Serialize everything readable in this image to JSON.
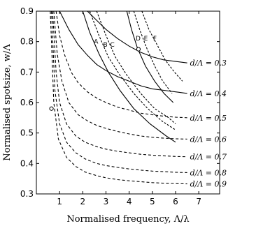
{
  "chart_data": {
    "type": "line",
    "xlabel": "Normalised frequency, Λ/λ",
    "ylabel": "Normalised spotsize, w/Λ",
    "xlim": [
      0,
      7.9
    ],
    "ylim": [
      0.3,
      0.9
    ],
    "xticks": [
      "1",
      "2",
      "3",
      "4",
      "5",
      "6",
      "7"
    ],
    "yticks": [
      "0.3",
      "0.4",
      "0.5",
      "0.6",
      "0.7",
      "0.8",
      "0.9"
    ],
    "grid": false,
    "series": [
      {
        "name": "d/Λ = 0.3",
        "style": "solid",
        "x": [
          2.2,
          2.6,
          3.0,
          3.5,
          4.0,
          4.5,
          5.0,
          5.5,
          6.0,
          6.5
        ],
        "y": [
          0.9,
          0.87,
          0.84,
          0.81,
          0.785,
          0.765,
          0.75,
          0.74,
          0.735,
          0.73
        ]
      },
      {
        "name": "d/Λ = 0.4",
        "style": "solid",
        "x": [
          1.0,
          1.4,
          1.8,
          2.2,
          2.6,
          3.0,
          3.5,
          4.0,
          4.5,
          5.0,
          5.5,
          6.0,
          6.5
        ],
        "y": [
          0.9,
          0.84,
          0.79,
          0.755,
          0.725,
          0.705,
          0.685,
          0.67,
          0.655,
          0.645,
          0.64,
          0.635,
          0.63
        ]
      },
      {
        "name": "d/Λ = 0.5",
        "style": "dashed",
        "x": [
          0.85,
          1.0,
          1.2,
          1.5,
          1.8,
          2.2,
          2.6,
          3.0,
          3.5,
          4.0,
          4.5,
          5.0,
          5.5,
          6.0,
          6.5
        ],
        "y": [
          0.9,
          0.82,
          0.76,
          0.7,
          0.665,
          0.635,
          0.615,
          0.6,
          0.585,
          0.575,
          0.565,
          0.56,
          0.555,
          0.552,
          0.55
        ]
      },
      {
        "name": "d/Λ = 0.6",
        "style": "dashed",
        "x": [
          0.75,
          0.9,
          1.1,
          1.4,
          1.8,
          2.2,
          2.6,
          3.0,
          3.5,
          4.0,
          4.5,
          5.0,
          5.5,
          6.0,
          6.5
        ],
        "y": [
          0.9,
          0.76,
          0.67,
          0.6,
          0.56,
          0.54,
          0.525,
          0.515,
          0.505,
          0.497,
          0.49,
          0.486,
          0.483,
          0.481,
          0.48
        ]
      },
      {
        "name": "d/Λ = 0.7",
        "style": "dashed",
        "x": [
          0.7,
          0.85,
          1.0,
          1.3,
          1.7,
          2.1,
          2.6,
          3.0,
          3.5,
          4.0,
          4.5,
          5.0,
          5.5,
          6.0,
          6.5
        ],
        "y": [
          0.9,
          0.7,
          0.6,
          0.53,
          0.49,
          0.47,
          0.455,
          0.447,
          0.44,
          0.435,
          0.43,
          0.427,
          0.425,
          0.423,
          0.422
        ]
      },
      {
        "name": "d/Λ = 0.8",
        "style": "dashed",
        "x": [
          0.65,
          0.8,
          1.0,
          1.3,
          1.7,
          2.1,
          2.6,
          3.0,
          3.5,
          4.0,
          4.5,
          5.0,
          5.5,
          6.0,
          6.5
        ],
        "y": [
          0.9,
          0.64,
          0.53,
          0.47,
          0.435,
          0.415,
          0.4,
          0.393,
          0.387,
          0.382,
          0.378,
          0.375,
          0.373,
          0.371,
          0.37
        ]
      },
      {
        "name": "d/Λ = 0.9",
        "style": "dashed",
        "x": [
          0.6,
          0.75,
          0.95,
          1.3,
          1.7,
          2.1,
          2.6,
          3.0,
          3.5,
          4.0,
          4.5,
          5.0,
          5.5,
          6.0,
          6.5
        ],
        "y": [
          0.9,
          0.6,
          0.48,
          0.42,
          0.39,
          0.372,
          0.36,
          0.353,
          0.347,
          0.343,
          0.34,
          0.337,
          0.335,
          0.334,
          0.333
        ]
      }
    ],
    "cutoff_curves": [
      {
        "label": "A",
        "x": [
          2.0,
          2.3,
          2.7,
          3.1,
          3.6,
          4.2,
          4.9,
          5.6,
          6.0
        ],
        "y": [
          0.9,
          0.83,
          0.76,
          0.7,
          0.64,
          0.58,
          0.53,
          0.49,
          0.47
        ]
      },
      {
        "label": "B",
        "x": [
          2.3,
          2.7,
          3.1,
          3.6,
          4.2,
          4.8,
          5.4,
          6.0
        ],
        "y": [
          0.9,
          0.82,
          0.75,
          0.69,
          0.63,
          0.58,
          0.54,
          0.51
        ]
      },
      {
        "label": "C",
        "x": [
          2.6,
          3.0,
          3.4,
          3.9,
          4.5,
          5.1,
          5.7,
          6.0
        ],
        "y": [
          0.9,
          0.82,
          0.75,
          0.69,
          0.63,
          0.58,
          0.55,
          0.53
        ]
      },
      {
        "label": "D",
        "x": [
          3.9,
          4.1,
          4.35,
          4.7,
          5.1,
          5.5,
          5.9
        ],
        "y": [
          0.9,
          0.84,
          0.78,
          0.72,
          0.67,
          0.63,
          0.6
        ]
      },
      {
        "label": "E",
        "x": [
          4.2,
          4.45,
          4.75,
          5.1,
          5.45,
          5.85
        ],
        "y": [
          0.9,
          0.84,
          0.78,
          0.72,
          0.67,
          0.63
        ]
      },
      {
        "label": "F",
        "x": [
          4.55,
          4.85,
          5.2,
          5.55,
          5.95,
          6.3
        ],
        "y": [
          0.9,
          0.84,
          0.79,
          0.74,
          0.7,
          0.67
        ]
      }
    ],
    "markers": [
      {
        "x": 0.65,
        "y": 0.58
      },
      {
        "x": 4.4,
        "y": 0.775
      }
    ]
  }
}
